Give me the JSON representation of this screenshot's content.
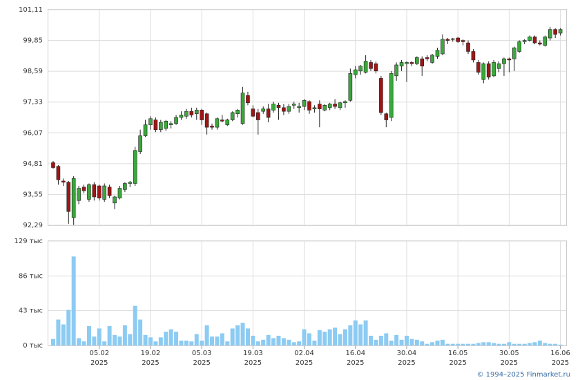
{
  "chart_data": [
    {
      "type": "candlestick",
      "open": [
        94.85,
        94.7,
        94.1,
        94.05,
        92.6,
        93.3,
        93.85,
        93.35,
        93.95,
        93.9,
        93.35,
        93.85,
        93.2,
        93.4,
        93.75,
        94.0,
        94.0,
        95.3,
        95.95,
        96.4,
        96.6,
        96.2,
        96.25,
        96.4,
        96.45,
        96.7,
        96.75,
        96.95,
        96.85,
        97.0,
        96.85,
        96.35,
        96.3,
        96.6,
        96.4,
        96.6,
        96.85,
        96.45,
        97.6,
        97.05,
        96.9,
        96.95,
        97.05,
        97.0,
        97.2,
        97.1,
        96.95,
        97.2,
        97.1,
        97.15,
        97.35,
        97.05,
        97.25,
        97.0,
        97.1,
        97.25,
        97.1,
        97.3,
        97.4,
        98.45,
        98.6,
        98.55,
        98.95,
        98.9,
        98.3,
        96.85,
        96.7,
        98.4,
        98.8,
        98.9,
        98.95,
        98.9,
        99.1,
        99.15,
        98.95,
        99.2,
        99.3,
        99.9,
        99.9,
        99.95,
        99.85,
        99.75,
        99.4,
        98.95,
        98.25,
        98.9,
        98.4,
        98.7,
        98.9,
        99.1,
        99.1,
        99.4,
        99.8,
        99.85,
        100.0,
        99.75,
        99.65,
        99.95,
        100.3,
        100.15
      ],
      "high": [
        94.92,
        94.75,
        94.2,
        94.1,
        94.3,
        93.9,
        93.95,
        94.0,
        94.05,
        93.95,
        94.0,
        93.95,
        93.5,
        93.9,
        94.05,
        94.1,
        95.5,
        96.2,
        96.6,
        96.75,
        96.7,
        96.6,
        96.6,
        96.55,
        96.8,
        96.95,
        97.05,
        97.1,
        97.1,
        97.05,
        96.9,
        96.45,
        96.7,
        96.8,
        96.65,
        96.95,
        97.05,
        97.95,
        97.75,
        97.2,
        97.05,
        97.15,
        97.25,
        97.35,
        97.3,
        97.25,
        97.25,
        97.35,
        97.3,
        97.45,
        97.4,
        97.2,
        97.4,
        97.25,
        97.3,
        97.45,
        97.35,
        97.4,
        98.7,
        98.8,
        98.85,
        99.25,
        99.05,
        99.0,
        98.4,
        96.9,
        98.6,
        98.95,
        99.05,
        99.0,
        99.0,
        99.2,
        99.2,
        99.25,
        99.3,
        99.55,
        100.1,
        99.95,
        99.95,
        100.0,
        99.9,
        99.85,
        99.5,
        99.05,
        98.95,
        99.0,
        99.05,
        99.0,
        99.15,
        99.15,
        99.6,
        99.85,
        99.9,
        100.05,
        100.05,
        99.85,
        100.05,
        100.4,
        100.35,
        100.35
      ],
      "low": [
        94.6,
        93.95,
        93.9,
        92.35,
        92.3,
        93.15,
        93.6,
        93.25,
        93.3,
        93.3,
        93.25,
        93.4,
        92.95,
        93.35,
        93.65,
        93.85,
        93.9,
        95.2,
        95.9,
        96.2,
        96.1,
        96.1,
        96.15,
        96.25,
        96.4,
        96.6,
        96.65,
        96.7,
        96.6,
        96.4,
        96.0,
        96.2,
        96.2,
        96.5,
        96.35,
        96.55,
        96.7,
        96.4,
        97.2,
        96.7,
        96.0,
        96.85,
        96.5,
        96.9,
        96.6,
        96.8,
        96.85,
        97.05,
        96.9,
        97.0,
        96.85,
        96.9,
        96.3,
        96.95,
        97.0,
        97.05,
        97.0,
        97.1,
        97.35,
        98.3,
        98.45,
        98.5,
        98.6,
        98.5,
        96.8,
        96.3,
        96.55,
        98.2,
        98.6,
        98.15,
        98.8,
        98.85,
        98.4,
        99.0,
        98.9,
        99.1,
        99.25,
        99.7,
        99.8,
        99.75,
        99.65,
        99.3,
        98.95,
        98.45,
        98.1,
        98.25,
        98.35,
        98.55,
        98.4,
        98.55,
        98.6,
        99.35,
        99.7,
        99.8,
        99.7,
        99.65,
        99.6,
        99.85,
        99.95,
        100.05
      ],
      "close": [
        94.65,
        94.15,
        94.05,
        92.85,
        94.2,
        93.8,
        93.7,
        93.95,
        93.45,
        93.4,
        93.9,
        93.5,
        93.45,
        93.8,
        94.0,
        94.05,
        95.35,
        95.95,
        96.4,
        96.65,
        96.2,
        96.5,
        96.55,
        96.45,
        96.7,
        96.8,
        96.95,
        96.8,
        97.0,
        96.6,
        96.3,
        96.3,
        96.65,
        96.55,
        96.6,
        96.9,
        97.0,
        97.7,
        97.3,
        96.75,
        96.6,
        97.05,
        96.7,
        97.25,
        97.1,
        96.95,
        97.15,
        97.25,
        97.15,
        97.4,
        97.0,
        97.1,
        97.05,
        97.2,
        97.25,
        97.15,
        97.3,
        97.35,
        98.5,
        98.65,
        98.8,
        99.0,
        98.7,
        98.6,
        96.9,
        96.6,
        98.5,
        98.85,
        98.95,
        98.95,
        98.9,
        99.15,
        98.8,
        99.1,
        99.25,
        99.45,
        99.9,
        99.85,
        99.92,
        99.8,
        99.8,
        99.4,
        99.05,
        98.55,
        98.9,
        98.35,
        98.95,
        98.9,
        99.1,
        99.05,
        99.55,
        99.8,
        99.85,
        100.0,
        99.75,
        99.7,
        100.0,
        100.3,
        100.1,
        100.3
      ],
      "up_color": "#3aa83a",
      "down_color": "#9e1515",
      "ylim": [
        92.29,
        101.11
      ],
      "yticks": [
        {
          "value": 92.29,
          "label": "92,29"
        },
        {
          "value": 93.55,
          "label": "93,55"
        },
        {
          "value": 94.81,
          "label": "94,81"
        },
        {
          "value": 96.07,
          "label": "96,07"
        },
        {
          "value": 97.33,
          "label": "97,33"
        },
        {
          "value": 98.59,
          "label": "98,59"
        },
        {
          "value": 99.85,
          "label": "99,85"
        },
        {
          "value": 101.11,
          "label": "101,11"
        }
      ],
      "grid": true
    },
    {
      "type": "bar",
      "categories": [
        null,
        null,
        null,
        null,
        null,
        null,
        null,
        null,
        null,
        "05.02",
        null,
        null,
        null,
        null,
        null,
        null,
        null,
        null,
        null,
        "19.02",
        null,
        null,
        null,
        null,
        null,
        null,
        null,
        null,
        null,
        "05.03",
        null,
        null,
        null,
        null,
        null,
        null,
        null,
        null,
        null,
        "19.03",
        null,
        null,
        null,
        null,
        null,
        null,
        null,
        null,
        null,
        "02.04",
        null,
        null,
        null,
        null,
        null,
        null,
        null,
        null,
        null,
        "16.04",
        null,
        null,
        null,
        null,
        null,
        null,
        null,
        null,
        null,
        "30.04",
        null,
        null,
        null,
        null,
        null,
        null,
        null,
        null,
        null,
        "16.05",
        null,
        null,
        null,
        null,
        null,
        null,
        null,
        null,
        null,
        "30.05",
        null,
        null,
        null,
        null,
        null,
        null,
        null,
        null,
        null,
        "16.06"
      ],
      "category_years": [
        null,
        null,
        null,
        null,
        null,
        null,
        null,
        null,
        null,
        "2025",
        null,
        null,
        null,
        null,
        null,
        null,
        null,
        null,
        null,
        "2025",
        null,
        null,
        null,
        null,
        null,
        null,
        null,
        null,
        null,
        "2025",
        null,
        null,
        null,
        null,
        null,
        null,
        null,
        null,
        null,
        "2025",
        null,
        null,
        null,
        null,
        null,
        null,
        null,
        null,
        null,
        "2025",
        null,
        null,
        null,
        null,
        null,
        null,
        null,
        null,
        null,
        "2025",
        null,
        null,
        null,
        null,
        null,
        null,
        null,
        null,
        null,
        "2025",
        null,
        null,
        null,
        null,
        null,
        null,
        null,
        null,
        null,
        "2025",
        null,
        null,
        null,
        null,
        null,
        null,
        null,
        null,
        null,
        "2025",
        null,
        null,
        null,
        null,
        null,
        null,
        null,
        null,
        null,
        "2025"
      ],
      "values": [
        8000,
        32000,
        26000,
        44000,
        110000,
        9000,
        5000,
        24000,
        11000,
        21000,
        5000,
        24000,
        13000,
        11000,
        25000,
        14000,
        49000,
        32000,
        13000,
        10000,
        5000,
        10000,
        17000,
        20000,
        17000,
        6000,
        6000,
        5000,
        14000,
        6000,
        25000,
        11000,
        11000,
        15000,
        5000,
        21000,
        25000,
        28000,
        21000,
        12000,
        5000,
        7000,
        13000,
        9000,
        12000,
        9000,
        7000,
        4000,
        5000,
        20000,
        15000,
        6000,
        19000,
        17000,
        20000,
        22000,
        14000,
        20000,
        25000,
        31000,
        26000,
        31000,
        12000,
        7000,
        12000,
        15000,
        6000,
        13000,
        7000,
        12000,
        8000,
        7000,
        5000,
        2000,
        4000,
        6000,
        7000,
        2000,
        2000,
        2000,
        2000,
        2000,
        2000,
        3000,
        4000,
        4000,
        3000,
        2000,
        2000,
        4000,
        2000,
        2000,
        2000,
        3000,
        4000,
        6000,
        3000,
        2000,
        2000,
        1000
      ],
      "color": "#8ccbf2",
      "ylim": [
        0,
        129000
      ],
      "yticks": [
        {
          "value": 0,
          "label": "0 тыс"
        },
        {
          "value": 43000,
          "label": "43 тыс"
        },
        {
          "value": 86000,
          "label": "86 тыс"
        },
        {
          "value": 129000,
          "label": "129 тыс"
        }
      ],
      "grid": true
    }
  ],
  "footer": "© 1994–2025 Finmarket.ru"
}
